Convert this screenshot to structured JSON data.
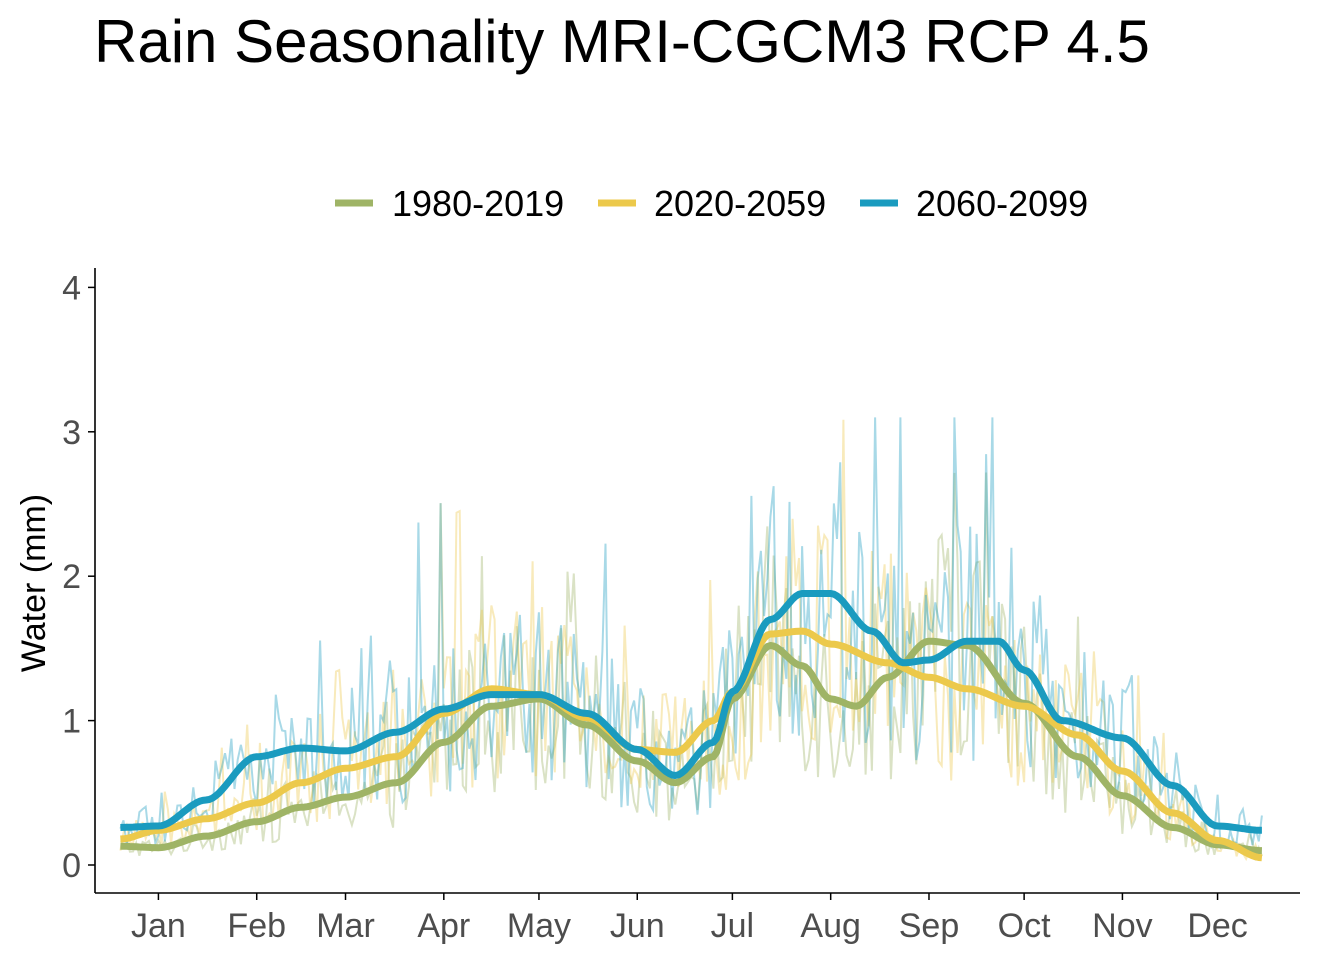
{
  "chart_data": {
    "type": "line",
    "title": "Rain Seasonality MRI-CGCM3 RCP 4.5",
    "xlabel": "",
    "ylabel": "Water (mm)",
    "ylim": [
      0,
      4
    ],
    "yticks": [
      "0",
      "1",
      "2",
      "3",
      "4"
    ],
    "x_unit": "day of year",
    "xlim": [
      -5,
      375
    ],
    "xticks": [
      {
        "label": "Jan",
        "day": 15
      },
      {
        "label": "Feb",
        "day": 46
      },
      {
        "label": "Mar",
        "day": 74
      },
      {
        "label": "Apr",
        "day": 105
      },
      {
        "label": "May",
        "day": 135
      },
      {
        "label": "Jun",
        "day": 166
      },
      {
        "label": "Jul",
        "day": 196
      },
      {
        "label": "Aug",
        "day": 227
      },
      {
        "label": "Sep",
        "day": 258
      },
      {
        "label": "Oct",
        "day": 288
      },
      {
        "label": "Nov",
        "day": 319
      },
      {
        "label": "Dec",
        "day": 349
      }
    ],
    "legend_position": "top",
    "grid": false,
    "series": [
      {
        "name": "1980-2019",
        "color": "#9fb466",
        "smooth": [
          [
            3,
            0.13
          ],
          [
            15,
            0.12
          ],
          [
            30,
            0.2
          ],
          [
            46,
            0.3
          ],
          [
            60,
            0.4
          ],
          [
            74,
            0.47
          ],
          [
            90,
            0.57
          ],
          [
            105,
            0.85
          ],
          [
            120,
            1.1
          ],
          [
            135,
            1.15
          ],
          [
            150,
            0.97
          ],
          [
            166,
            0.72
          ],
          [
            178,
            0.57
          ],
          [
            190,
            0.75
          ],
          [
            196,
            1.15
          ],
          [
            208,
            1.52
          ],
          [
            218,
            1.38
          ],
          [
            227,
            1.15
          ],
          [
            235,
            1.1
          ],
          [
            245,
            1.3
          ],
          [
            258,
            1.55
          ],
          [
            270,
            1.52
          ],
          [
            288,
            1.12
          ],
          [
            305,
            0.75
          ],
          [
            319,
            0.48
          ],
          [
            335,
            0.26
          ],
          [
            349,
            0.14
          ],
          [
            363,
            0.1
          ]
        ],
        "daily_envelope": [
          0.0,
          3.05
        ]
      },
      {
        "name": "2020-2059",
        "color": "#ecc94b",
        "smooth": [
          [
            3,
            0.18
          ],
          [
            15,
            0.24
          ],
          [
            30,
            0.32
          ],
          [
            46,
            0.43
          ],
          [
            60,
            0.57
          ],
          [
            74,
            0.67
          ],
          [
            90,
            0.75
          ],
          [
            105,
            1.05
          ],
          [
            120,
            1.22
          ],
          [
            135,
            1.18
          ],
          [
            150,
            1.02
          ],
          [
            166,
            0.8
          ],
          [
            178,
            0.78
          ],
          [
            190,
            1.0
          ],
          [
            196,
            1.2
          ],
          [
            208,
            1.6
          ],
          [
            218,
            1.62
          ],
          [
            227,
            1.53
          ],
          [
            245,
            1.4
          ],
          [
            258,
            1.3
          ],
          [
            270,
            1.22
          ],
          [
            288,
            1.1
          ],
          [
            305,
            0.9
          ],
          [
            319,
            0.65
          ],
          [
            335,
            0.36
          ],
          [
            349,
            0.17
          ],
          [
            363,
            0.05
          ]
        ],
        "daily_envelope": [
          0.0,
          3.42
        ]
      },
      {
        "name": "2060-2099",
        "color": "#1a9bbf",
        "smooth": [
          [
            3,
            0.26
          ],
          [
            15,
            0.27
          ],
          [
            30,
            0.45
          ],
          [
            46,
            0.75
          ],
          [
            60,
            0.81
          ],
          [
            74,
            0.79
          ],
          [
            90,
            0.92
          ],
          [
            105,
            1.08
          ],
          [
            120,
            1.18
          ],
          [
            135,
            1.18
          ],
          [
            150,
            1.05
          ],
          [
            166,
            0.8
          ],
          [
            178,
            0.62
          ],
          [
            190,
            0.85
          ],
          [
            196,
            1.2
          ],
          [
            208,
            1.7
          ],
          [
            218,
            1.88
          ],
          [
            227,
            1.88
          ],
          [
            240,
            1.62
          ],
          [
            250,
            1.4
          ],
          [
            258,
            1.42
          ],
          [
            270,
            1.55
          ],
          [
            280,
            1.55
          ],
          [
            288,
            1.35
          ],
          [
            300,
            1.0
          ],
          [
            319,
            0.88
          ],
          [
            335,
            0.55
          ],
          [
            349,
            0.27
          ],
          [
            363,
            0.24
          ]
        ],
        "daily_envelope": [
          0.0,
          3.1
        ]
      }
    ]
  }
}
